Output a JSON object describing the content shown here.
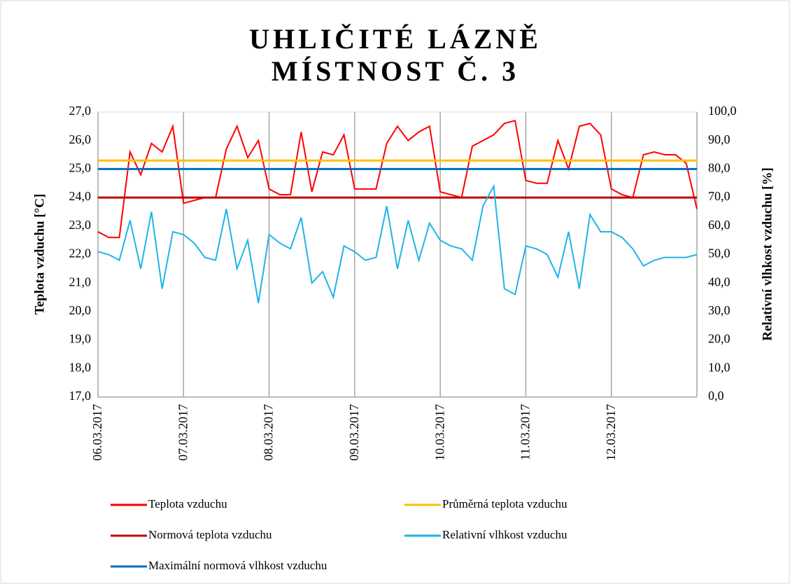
{
  "chart_data": {
    "type": "line",
    "title": [
      "UHLIČITÉ LÁZNĚ",
      "MÍSTNOST Č. 3"
    ],
    "ylabel": "Teplota vzduchu  [°C]",
    "y2label": "Relativní vlhkost vzduchu  [%]",
    "x": [
      0,
      3,
      6,
      9,
      12,
      15,
      18,
      21,
      24,
      27,
      30,
      33,
      36,
      39,
      42,
      45,
      48,
      51,
      54,
      57,
      60,
      63,
      66,
      69,
      72,
      75,
      78,
      81,
      84,
      87,
      90,
      93,
      96,
      99,
      102,
      105,
      108,
      111,
      114,
      117,
      120,
      123,
      126,
      129,
      132,
      135,
      138,
      141,
      144,
      147,
      150,
      153,
      156,
      159,
      162,
      165,
      168
    ],
    "xlim": [
      0,
      168
    ],
    "xticks": [
      {
        "value": 0,
        "label": "06.03.2017"
      },
      {
        "value": 24,
        "label": "07.03.2017"
      },
      {
        "value": 48,
        "label": "08.03.2017"
      },
      {
        "value": 72,
        "label": "09.03.2017"
      },
      {
        "value": 96,
        "label": "10.03.2017"
      },
      {
        "value": 120,
        "label": "11.03.2017"
      },
      {
        "value": 144,
        "label": "12.03.2017"
      }
    ],
    "ylim": [
      17,
      27
    ],
    "yticks": [
      {
        "value": 17,
        "label": "17,0"
      },
      {
        "value": 18,
        "label": "18,0"
      },
      {
        "value": 19,
        "label": "19,0"
      },
      {
        "value": 20,
        "label": "20,0"
      },
      {
        "value": 21,
        "label": "21,0"
      },
      {
        "value": 22,
        "label": "22,0"
      },
      {
        "value": 23,
        "label": "23,0"
      },
      {
        "value": 24,
        "label": "24,0"
      },
      {
        "value": 25,
        "label": "25,0"
      },
      {
        "value": 26,
        "label": "26,0"
      },
      {
        "value": 27,
        "label": "27,0"
      }
    ],
    "y2lim": [
      0,
      100
    ],
    "y2ticks": [
      {
        "value": 0,
        "label": "0,0"
      },
      {
        "value": 10,
        "label": "10,0"
      },
      {
        "value": 20,
        "label": "20,0"
      },
      {
        "value": 30,
        "label": "30,0"
      },
      {
        "value": 40,
        "label": "40,0"
      },
      {
        "value": 50,
        "label": "50,0"
      },
      {
        "value": 60,
        "label": "60,0"
      },
      {
        "value": 70,
        "label": "70,0"
      },
      {
        "value": 80,
        "label": "80,0"
      },
      {
        "value": 90,
        "label": "90,0"
      },
      {
        "value": 100,
        "label": "100,0"
      }
    ],
    "grid": "x",
    "series": [
      {
        "name": "Teplota vzduchu",
        "color": "#ff0000",
        "values": [
          22.8,
          22.6,
          22.6,
          25.6,
          24.8,
          25.9,
          25.6,
          26.5,
          23.8,
          23.9,
          24.0,
          24.0,
          25.7,
          26.5,
          25.4,
          26.0,
          24.3,
          24.1,
          24.1,
          26.3,
          24.2,
          25.6,
          25.5,
          26.2,
          24.3,
          24.3,
          24.3,
          25.9,
          26.5,
          26.0,
          26.3,
          26.5,
          24.2,
          24.1,
          24.0,
          25.8,
          26.0,
          26.2,
          26.6,
          26.7,
          24.6,
          24.5,
          24.5,
          26.0,
          25.0,
          26.5,
          26.6,
          26.2,
          24.3,
          24.1,
          24.0,
          25.5,
          25.6,
          25.5,
          25.5,
          25.2,
          23.6
        ]
      },
      {
        "name": "Průměrná teplota vzduchu",
        "color": "#ffc000",
        "value": 25.3
      },
      {
        "name": "Normová teplota vzduchu",
        "color": "#c00000",
        "value": 24.0
      },
      {
        "name": "Relativní vlhkost vzduchu",
        "color": "#1fb4e8",
        "axis": "y2",
        "values": [
          51,
          50,
          48,
          62,
          45,
          65,
          38,
          58,
          57,
          54,
          49,
          48,
          66,
          45,
          55,
          33,
          57,
          54,
          52,
          63,
          40,
          44,
          35,
          53,
          51,
          48,
          49,
          67,
          45,
          62,
          48,
          61,
          55,
          53,
          52,
          48,
          67,
          74,
          38,
          36,
          53,
          52,
          50,
          42,
          58,
          38,
          64,
          58,
          58,
          56,
          52,
          46,
          48,
          49,
          49,
          49,
          50
        ]
      },
      {
        "name": "Maximální normová vlhkost vzduchu",
        "color": "#0070c0",
        "axis": "y2",
        "value": 80
      }
    ]
  }
}
